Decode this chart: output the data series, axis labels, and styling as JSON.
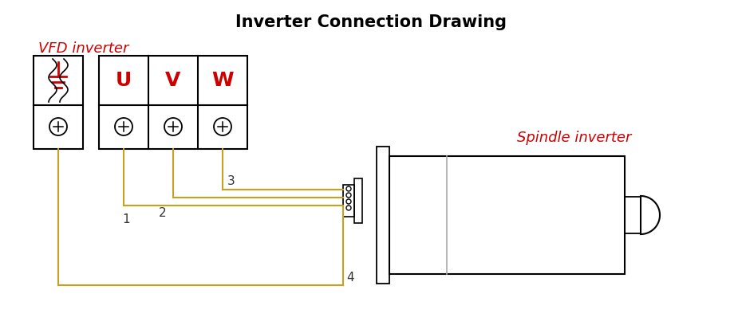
{
  "title": "Inverter Connection Drawing",
  "title_fontsize": 15,
  "title_color": "#000000",
  "vfd_label": "VFD inverter",
  "spindle_label": "Spindle inverter",
  "label_color": "#cc0000",
  "label_fontsize": 13,
  "terminal_labels": [
    "U",
    "V",
    "W"
  ],
  "wire_color": "#c8a020",
  "bg_color": "#ffffff",
  "line_color": "#000000",
  "gnd_color": "#cc0000",
  "uvw_color": "#cc0000"
}
